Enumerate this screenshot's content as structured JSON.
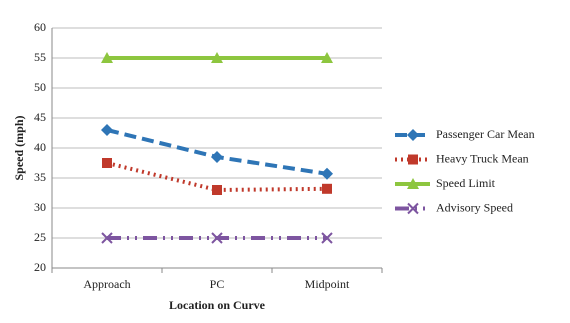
{
  "chart_data": {
    "type": "line",
    "x_label": "Location on Curve",
    "y_label": "Speed (mph)",
    "categories": [
      "Approach",
      "PC",
      "Midpoint"
    ],
    "series": [
      {
        "name": "Passenger Car Mean",
        "color": "#2e75b6",
        "values": [
          43,
          38.5,
          35.7
        ],
        "marker": "diamond",
        "line_style": "dashed"
      },
      {
        "name": "Heavy Truck Mean",
        "color": "#c0392b",
        "values": [
          37.5,
          33,
          33.2
        ],
        "marker": "square",
        "line_style": "dotted"
      },
      {
        "name": "Speed Limit",
        "color": "#8dc63f",
        "values": [
          55,
          55,
          55
        ],
        "marker": "triangle",
        "line_style": "solid"
      },
      {
        "name": "Advisory Speed",
        "color": "#7d55a0",
        "values": [
          25,
          25,
          25
        ],
        "marker": "x",
        "line_style": "dashdot"
      }
    ],
    "ylim": [
      20,
      60
    ],
    "yticks": [
      20,
      25,
      30,
      35,
      40,
      45,
      50,
      55,
      60
    ],
    "grid": true,
    "legend": "right"
  }
}
